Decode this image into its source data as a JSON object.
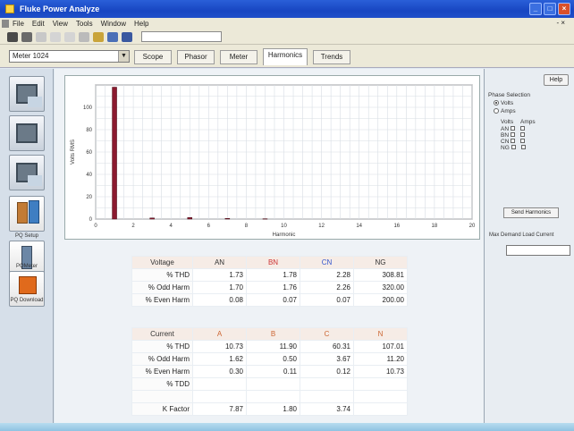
{
  "window": {
    "title": "Fluke Power Analyze"
  },
  "menu": [
    "File",
    "Edit",
    "View",
    "Tools",
    "Window",
    "Help"
  ],
  "toolbar": {
    "icons": [
      "open-icon",
      "save-icon",
      "print-icon",
      "cut-icon",
      "copy-icon",
      "paste-icon",
      "settings-icon",
      "help-icon",
      "chart-icon"
    ]
  },
  "site": {
    "selected": "Meter 1024"
  },
  "tabs": [
    "Scope",
    "Phasor",
    "Meter",
    "Harmonics",
    "Trends"
  ],
  "active_tab_index": 3,
  "left_nav": [
    {
      "label": "",
      "icon": "monitor-icon"
    },
    {
      "label": "",
      "icon": "waveform-icon"
    },
    {
      "label": "",
      "icon": "display-icon"
    },
    {
      "label": "PQ Setup",
      "icon": "setup-icon"
    },
    {
      "label": "PQMeter",
      "icon": "meter-icon"
    },
    {
      "label": "PQ Download",
      "icon": "download-icon"
    }
  ],
  "chart_data": {
    "type": "bar",
    "title": "",
    "xlabel": "Harmonic",
    "ylabel": "Volts RMS",
    "xlim": [
      0,
      20
    ],
    "ylim": [
      0,
      120
    ],
    "xticks": [
      0,
      2,
      4,
      6,
      8,
      10,
      12,
      14,
      16,
      18,
      20
    ],
    "yticks": [
      0,
      20,
      40,
      60,
      80,
      100
    ],
    "series": [
      {
        "name": "",
        "color": "#8b1a2f",
        "x": [
          1,
          3,
          5,
          7,
          9
        ],
        "values": [
          118,
          1.0,
          1.4,
          0.6,
          0.3
        ]
      }
    ]
  },
  "voltage_table": {
    "headers": [
      "Voltage",
      "AN",
      "BN",
      "CN",
      "NG"
    ],
    "header_colors": [
      "#333333",
      "#333333",
      "#cc3333",
      "#3355cc",
      "#333333"
    ],
    "rows": [
      {
        "label": "% THD",
        "values": [
          "1.73",
          "1.78",
          "2.28",
          "308.81"
        ]
      },
      {
        "label": "% Odd Harm",
        "values": [
          "1.70",
          "1.76",
          "2.26",
          "320.00"
        ]
      },
      {
        "label": "% Even Harm",
        "values": [
          "0.08",
          "0.07",
          "0.07",
          "200.00"
        ]
      }
    ]
  },
  "current_table": {
    "headers": [
      "Current",
      "A",
      "B",
      "C",
      "N"
    ],
    "header_colors": [
      "#333333",
      "#cc6633",
      "#cc6633",
      "#cc6633",
      "#cc6633"
    ],
    "rows": [
      {
        "label": "% THD",
        "values": [
          "10.73",
          "11.90",
          "60.31",
          "107.01"
        ]
      },
      {
        "label": "% Odd Harm",
        "values": [
          "1.62",
          "0.50",
          "3.67",
          "11.20"
        ]
      },
      {
        "label": "% Even Harm",
        "values": [
          "0.30",
          "0.11",
          "0.12",
          "10.73"
        ]
      },
      {
        "label": "% TDD",
        "values": [
          "",
          "",
          "",
          ""
        ]
      },
      {
        "label": "",
        "values": [
          "",
          "",
          "",
          ""
        ]
      },
      {
        "label": "K Factor",
        "values": [
          "7.87",
          "1.80",
          "3.74",
          ""
        ]
      }
    ]
  },
  "sidebar": {
    "help_label": "Help",
    "phase_selection_label": "Phase Selection",
    "radio_options": [
      {
        "label": "Volts",
        "selected": true
      },
      {
        "label": "Amps",
        "selected": false
      }
    ],
    "phase_header": [
      "Volts",
      "Amps"
    ],
    "phases": [
      "AN",
      "BN",
      "CN",
      "NG"
    ],
    "send_button_label": "Send Harmonics",
    "load_current_label": "Max Demand Load Current"
  }
}
